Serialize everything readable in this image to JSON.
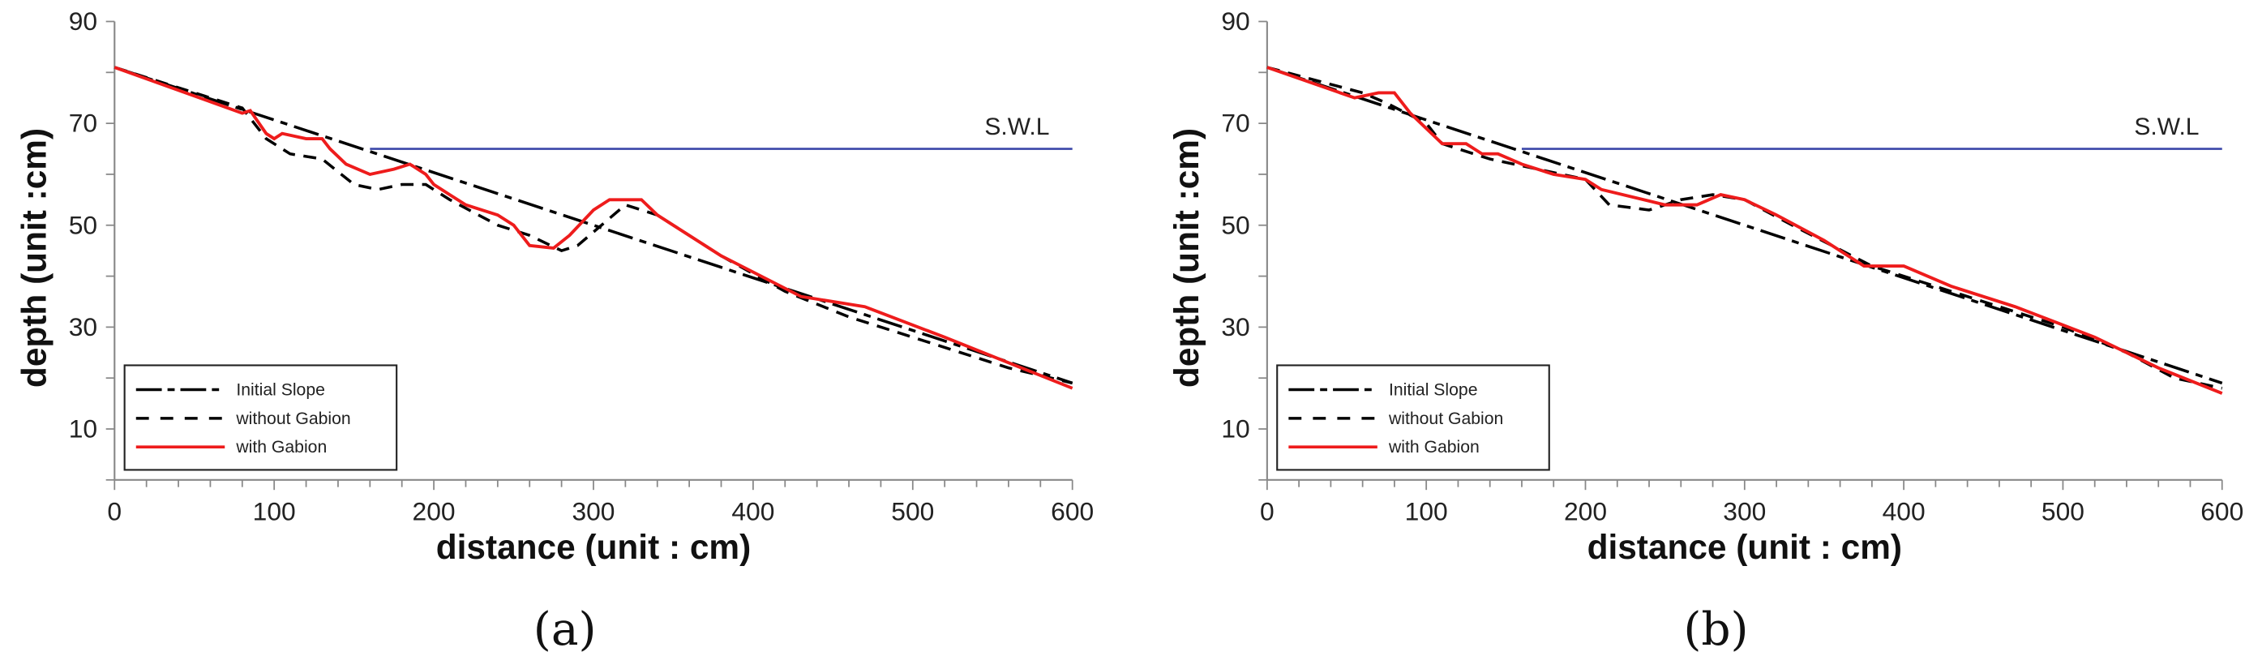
{
  "chart_data": [
    {
      "type": "line",
      "caption": "(a)",
      "xlabel": "distance (unit : cm)",
      "ylabel": "depth (unit :cm)",
      "xlim": [
        0,
        600
      ],
      "ylim": [
        0,
        90
      ],
      "xticks": [
        0,
        100,
        200,
        300,
        400,
        500,
        600
      ],
      "yticks": [
        10,
        30,
        50,
        70,
        90
      ],
      "grid": false,
      "legend_position": "bottom-left",
      "annotation": {
        "text": "S.W.L",
        "y": 65,
        "x_range": [
          160,
          600
        ],
        "color": "#3a46a8"
      },
      "series": [
        {
          "name": "Initial Slope",
          "style": "dash-dot",
          "color": "#000000",
          "x": [
            0,
            600
          ],
          "y": [
            81,
            19
          ]
        },
        {
          "name": "without Gabion",
          "style": "dashed",
          "color": "#000000",
          "x": [
            0,
            80,
            95,
            110,
            130,
            150,
            165,
            180,
            195,
            210,
            240,
            260,
            280,
            290,
            305,
            320,
            340,
            380,
            420,
            460,
            500,
            560,
            600
          ],
          "y": [
            81,
            73,
            67,
            64,
            63,
            58,
            57,
            58,
            58,
            55,
            50,
            48,
            45,
            46,
            50,
            54,
            52,
            44,
            37,
            32,
            28,
            22,
            19
          ]
        },
        {
          "name": "with Gabion",
          "style": "solid",
          "color": "#ee1c1c",
          "x": [
            0,
            80,
            85,
            95,
            100,
            105,
            120,
            130,
            135,
            145,
            160,
            175,
            185,
            195,
            200,
            210,
            220,
            240,
            250,
            260,
            275,
            285,
            300,
            310,
            330,
            340,
            380,
            430,
            470,
            520,
            560,
            600
          ],
          "y": [
            81,
            72,
            72.5,
            68,
            67,
            68,
            67,
            67,
            65,
            62,
            60,
            61,
            62,
            60,
            58,
            56,
            54,
            52,
            50,
            46,
            45.5,
            48,
            53,
            55,
            55,
            52,
            44,
            36,
            34,
            28,
            23,
            18
          ]
        }
      ]
    },
    {
      "type": "line",
      "caption": "(b)",
      "xlabel": "distance (unit : cm)",
      "ylabel": "depth (unit :cm)",
      "xlim": [
        0,
        600
      ],
      "ylim": [
        0,
        90
      ],
      "xticks": [
        0,
        100,
        200,
        300,
        400,
        500,
        600
      ],
      "yticks": [
        10,
        30,
        50,
        70,
        90
      ],
      "grid": false,
      "legend_position": "bottom-left",
      "annotation": {
        "text": "S.W.L",
        "y": 65,
        "x_range": [
          160,
          600
        ],
        "color": "#3a46a8"
      },
      "series": [
        {
          "name": "Initial Slope",
          "style": "dash-dot",
          "color": "#000000",
          "x": [
            0,
            600
          ],
          "y": [
            81,
            19
          ]
        },
        {
          "name": "without Gabion",
          "style": "dashed",
          "color": "#000000",
          "x": [
            0,
            60,
            75,
            100,
            110,
            140,
            170,
            200,
            215,
            240,
            260,
            280,
            300,
            330,
            380,
            420,
            460,
            500,
            540,
            570,
            600
          ],
          "y": [
            81,
            76,
            74,
            70,
            66,
            63,
            61,
            59,
            54,
            53,
            55,
            56,
            55,
            50,
            42,
            38,
            34,
            30,
            25,
            20,
            18
          ]
        },
        {
          "name": "with Gabion",
          "style": "solid",
          "color": "#ee1c1c",
          "x": [
            0,
            55,
            70,
            80,
            90,
            100,
            110,
            125,
            135,
            145,
            160,
            180,
            200,
            210,
            250,
            270,
            285,
            300,
            320,
            350,
            375,
            400,
            430,
            470,
            520,
            560,
            600
          ],
          "y": [
            81,
            75,
            76,
            76,
            72,
            69,
            66,
            66,
            64,
            64,
            62,
            60,
            59,
            57,
            54,
            54,
            56,
            55,
            52,
            47,
            42,
            42,
            38,
            34,
            28,
            22,
            17
          ]
        }
      ]
    }
  ]
}
